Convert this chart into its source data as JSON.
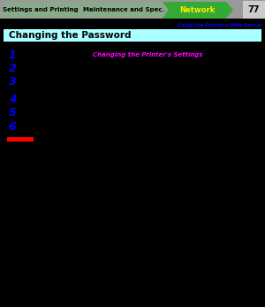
{
  "bg_color": "#000000",
  "outer_bg": "#1a1a2e",
  "tab_strip_bg": "#aaaaaa",
  "tab1_text": "Settings and Printing",
  "tab1_bg": "#88aa88",
  "tab2_text": "Maintenance and Spec.",
  "tab2_bg": "#88aa88",
  "tab3_text": "Network",
  "tab3_bg": "#33aa33",
  "tab3_text_color": "#ffee00",
  "page_num": "77",
  "page_num_bg": "#dddddd",
  "breadcrumb_text": "Using the Printer's Web Server",
  "breadcrumb_color": "#0000ff",
  "section_title": "Changing the Password",
  "section_bg": "#aaffff",
  "section_text_color": "#000000",
  "step_color": "#0000ff",
  "steps": [
    "1",
    "2",
    "3",
    "4",
    "5",
    "6"
  ],
  "step_note_color": "#ff00ff",
  "step_note": "Changing the Printer's Settings",
  "red_bar_color": "#ff0000",
  "tab_text_color": "#000000",
  "tab_text_bold": true
}
